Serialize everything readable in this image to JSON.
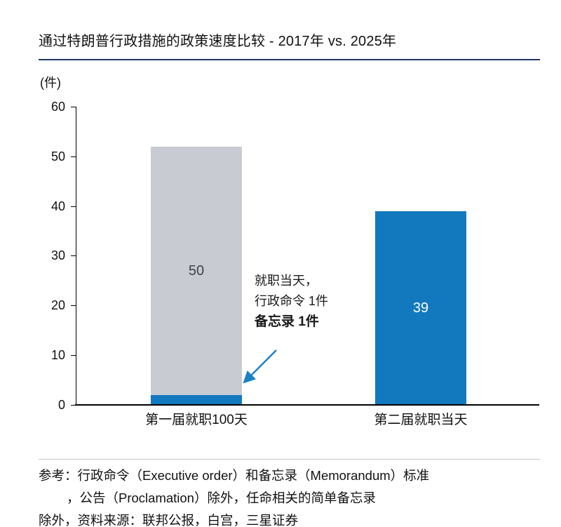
{
  "title": "通过特朗普行政措施的政策速度比较 - 2017年 vs. 2025年",
  "chart_data": {
    "type": "bar",
    "stacked": true,
    "title": "通过特朗普行政措施的政策速度比较 - 2017年 vs. 2025年",
    "ylabel": "(件)",
    "ylim": [
      0,
      60
    ],
    "yticks": [
      0,
      10,
      20,
      30,
      40,
      50,
      60
    ],
    "grid": false,
    "legend": "none",
    "categories": [
      "第一届就职100天",
      "第二届就职当天"
    ],
    "series": [
      {
        "name": "inauguration-day-actions",
        "color": "#1279be",
        "values": [
          2,
          39
        ]
      },
      {
        "name": "remainder-of-first-100-days",
        "color": "#c8cbd1",
        "values": [
          50,
          0
        ]
      }
    ],
    "bar_labels": [
      "50",
      "39"
    ],
    "annotation": {
      "lines": [
        "就职当天，",
        "行政命令 1件",
        "备忘录 1件"
      ],
      "arrow_color": "#1b82c5"
    }
  },
  "footer": {
    "lines": [
      "参考：行政命令（Executive order）和备忘录（Memorandum）标准",
      "，公告（Proclamation）除外，任命相关的简单备忘录",
      "除外，资料来源：联邦公报，白宫，三星证券"
    ]
  },
  "colors": {
    "bar_blue": "#1279be",
    "bar_gray": "#c8cbd1",
    "title_rule": "#1f3864",
    "footer_rule": "#c4c4c4",
    "axis": "#000000"
  }
}
